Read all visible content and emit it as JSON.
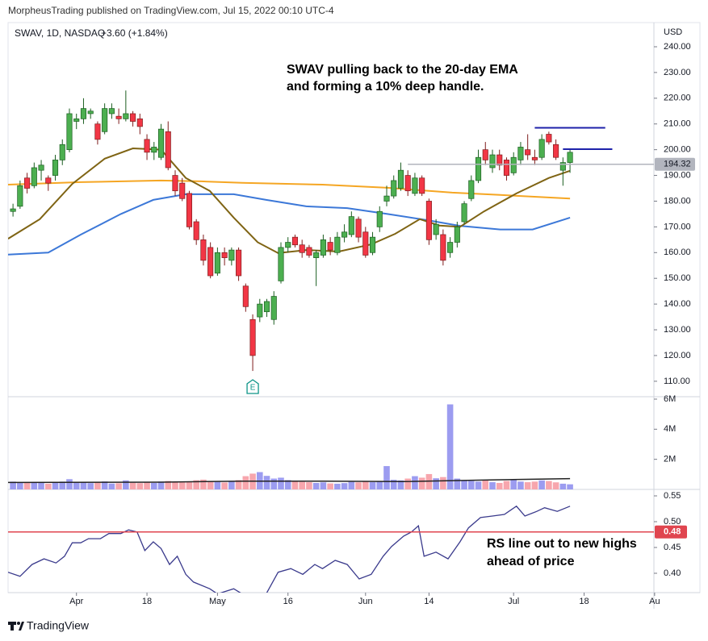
{
  "published_by": "MorpheusTrading published on TradingView.com, Jul 15, 2022 00:10 UTC-4",
  "footer": "TradingView",
  "chart_data": {
    "type": "candlestick",
    "symbol": "SWAV, 1D, NASDAQ",
    "change_label": "+3.60 (+1.84%)",
    "currency": "USD",
    "up_color": "#4caf50",
    "down_color": "#f23645",
    "xlim": [
      -0.7,
      90.9
    ],
    "xticks": [
      {
        "value": 9,
        "label": "Apr"
      },
      {
        "value": 19,
        "label": "18"
      },
      {
        "value": 29,
        "label": "May"
      },
      {
        "value": 39,
        "label": "16"
      },
      {
        "value": 50,
        "label": "Jun"
      },
      {
        "value": 59,
        "label": "14"
      },
      {
        "value": 71,
        "label": "Jul"
      },
      {
        "value": 81,
        "label": "18"
      },
      {
        "value": 91,
        "label": "Au"
      }
    ],
    "ylim": [
      104.0,
      249.4
    ],
    "yticks": [
      {
        "value": 110,
        "label": "110.00"
      },
      {
        "value": 120,
        "label": "120.00"
      },
      {
        "value": 130,
        "label": "130.00"
      },
      {
        "value": 140,
        "label": "140.00"
      },
      {
        "value": 150,
        "label": "150.00"
      },
      {
        "value": 160,
        "label": "160.00"
      },
      {
        "value": 170,
        "label": "170.00"
      },
      {
        "value": 180,
        "label": "180.00"
      },
      {
        "value": 190,
        "label": "190.00"
      },
      {
        "value": 200,
        "label": "200.00"
      },
      {
        "value": 210,
        "label": "210.00"
      },
      {
        "value": 220,
        "label": "220.00"
      },
      {
        "value": 230,
        "label": "230.00"
      },
      {
        "value": 240,
        "label": "240.00"
      }
    ],
    "ohlc": [
      [
        176,
        179,
        174,
        177
      ],
      [
        178,
        188,
        177,
        186
      ],
      [
        189,
        191,
        183,
        185
      ],
      [
        186,
        195,
        185,
        193
      ],
      [
        192,
        196,
        188,
        194
      ],
      [
        189,
        190,
        184,
        187
      ],
      [
        190,
        198,
        188,
        196
      ],
      [
        196,
        204,
        194,
        202
      ],
      [
        200,
        216,
        199,
        214
      ],
      [
        211,
        214,
        208,
        212
      ],
      [
        212,
        220,
        210,
        216
      ],
      [
        214,
        216,
        212,
        215
      ],
      [
        210,
        211,
        202,
        204
      ],
      [
        207,
        218,
        206,
        216
      ],
      [
        214,
        218,
        212,
        216
      ],
      [
        213,
        216,
        210,
        212
      ],
      [
        212,
        223,
        211,
        214
      ],
      [
        214,
        215,
        209,
        211
      ],
      [
        212,
        214,
        206,
        209
      ],
      [
        204,
        206,
        196,
        199
      ],
      [
        199,
        203,
        196,
        201
      ],
      [
        197,
        210,
        196,
        208
      ],
      [
        207,
        211,
        192,
        193
      ],
      [
        190,
        192,
        182,
        184
      ],
      [
        187,
        189,
        180,
        181
      ],
      [
        183,
        184,
        169,
        170
      ],
      [
        172,
        173,
        163,
        165
      ],
      [
        165,
        167,
        155,
        157
      ],
      [
        162,
        164,
        150,
        151
      ],
      [
        152,
        162,
        151,
        160
      ],
      [
        160,
        162,
        155,
        158
      ],
      [
        157,
        162,
        155,
        161
      ],
      [
        161,
        162,
        149,
        151
      ],
      [
        147,
        148,
        137,
        139
      ],
      [
        134,
        136,
        114,
        120
      ],
      [
        135,
        142,
        133,
        140
      ],
      [
        137,
        142,
        135,
        141
      ],
      [
        134,
        145,
        132,
        143
      ],
      [
        149,
        164,
        148,
        162
      ],
      [
        162,
        166,
        160,
        164
      ],
      [
        166,
        167,
        162,
        163
      ],
      [
        163,
        165,
        158,
        160
      ],
      [
        162,
        163,
        158,
        159
      ],
      [
        158,
        161,
        147,
        160
      ],
      [
        159,
        167,
        158,
        165
      ],
      [
        164,
        166,
        159,
        161
      ],
      [
        160,
        168,
        159,
        166
      ],
      [
        166,
        171,
        164,
        168
      ],
      [
        167,
        176,
        166,
        174
      ],
      [
        173,
        174,
        164,
        166
      ],
      [
        168,
        170,
        158,
        159
      ],
      [
        160,
        168,
        159,
        166
      ],
      [
        170,
        178,
        168,
        176
      ],
      [
        180,
        186,
        178,
        182
      ],
      [
        182,
        190,
        181,
        188
      ],
      [
        185,
        195,
        184,
        192
      ],
      [
        190,
        192,
        182,
        184
      ],
      [
        183,
        191,
        182,
        189
      ],
      [
        189,
        190,
        182,
        183
      ],
      [
        180,
        181,
        163,
        165
      ],
      [
        167,
        173,
        165,
        171
      ],
      [
        167,
        169,
        155,
        157
      ],
      [
        160,
        166,
        158,
        164
      ],
      [
        164,
        172,
        162,
        170
      ],
      [
        172,
        180,
        171,
        179
      ],
      [
        181,
        190,
        180,
        188
      ],
      [
        188,
        200,
        187,
        197
      ],
      [
        200,
        203,
        194,
        196
      ],
      [
        193,
        200,
        191,
        198
      ],
      [
        198,
        200,
        192,
        194
      ],
      [
        196,
        197,
        188,
        190
      ],
      [
        191,
        199,
        190,
        197
      ],
      [
        196,
        203,
        194,
        201
      ],
      [
        200,
        206,
        196,
        198
      ],
      [
        197,
        200,
        194,
        196
      ],
      [
        197,
        206,
        196,
        204
      ],
      [
        206,
        207,
        202,
        203
      ],
      [
        202,
        204,
        196,
        197
      ],
      [
        192,
        197,
        186,
        195
      ],
      [
        195,
        200,
        191,
        199
      ]
    ],
    "moving_averages": [
      {
        "color": "#f5a623",
        "x": [
          -0.7,
          9.6,
          21,
          26.7,
          32.5,
          43.9,
          53.1,
          62.3,
          69.1,
          79
        ],
        "values": [
          186.4,
          187.4,
          188,
          187.7,
          187.1,
          186.4,
          185.2,
          183.3,
          182.4,
          181
        ]
      },
      {
        "color": "#3c78d8",
        "x": [
          -0.7,
          5,
          9.6,
          15.3,
          19.9,
          24.5,
          31.3,
          35.9,
          41.6,
          47.4,
          53.1,
          58.8,
          63.4,
          69.1,
          73.7,
          79
        ],
        "values": [
          159.2,
          160,
          167,
          175,
          180.5,
          182.7,
          182.7,
          180.5,
          178,
          177.3,
          175,
          172.6,
          170.4,
          169,
          169,
          173.6
        ]
      },
      {
        "color": "#7f6414",
        "x": [
          -0.7,
          3.8,
          8.4,
          13,
          17,
          21,
          24.5,
          27.9,
          31.3,
          34.7,
          37.6,
          41.6,
          46.2,
          50.8,
          54.2,
          57.7,
          60.5,
          63.4,
          66.8,
          71.4,
          76,
          79
        ],
        "values": [
          165.4,
          173,
          186.7,
          196.5,
          200.5,
          200,
          189,
          184,
          173.6,
          164,
          159.8,
          161,
          160.4,
          163.2,
          167.3,
          173,
          170.5,
          170,
          176,
          183,
          189,
          191.8
        ]
      }
    ],
    "price_lines": [
      {
        "value": 208.5,
        "x": [
          74,
          84
        ],
        "color": "#1e22aa"
      },
      {
        "value": 200.2,
        "x": [
          78,
          85
        ],
        "color": "#1e22aa"
      }
    ],
    "last_line": {
      "value": 194.32,
      "label": "194.32",
      "x": 56,
      "color": "#b2b5be"
    },
    "earnings": {
      "label": "E",
      "x": 34
    },
    "annotations": [
      {
        "lines": [
          "SWAV pulling back to the 20-day EMA",
          "and forming a 10% deep handle."
        ]
      },
      {
        "lines": [
          "RS line out to new highs",
          "ahead of price"
        ]
      }
    ],
    "volume": {
      "ylim": [
        0,
        6160000
      ],
      "yticks": [
        {
          "value": 2000000,
          "label": "2M"
        },
        {
          "value": 4000000,
          "label": "4M"
        },
        {
          "value": 6000000,
          "label": "6M"
        }
      ],
      "up_color": "#9c9cf0",
      "down_color": "#f7a6ad",
      "values": [
        520000,
        480000,
        450000,
        500000,
        430000,
        380000,
        460000,
        520000,
        680000,
        450000,
        500000,
        420000,
        470000,
        530000,
        390000,
        410000,
        600000,
        440000,
        420000,
        480000,
        430000,
        520000,
        560000,
        500000,
        470000,
        520000,
        610000,
        650000,
        560000,
        500000,
        460000,
        540000,
        620000,
        880000,
        1050000,
        1150000,
        900000,
        720000,
        780000,
        620000,
        560000,
        500000,
        480000,
        430000,
        470000,
        400000,
        380000,
        420000,
        500000,
        470000,
        520000,
        480000,
        560000,
        1550000,
        640000,
        600000,
        720000,
        880000,
        780000,
        1020000,
        740000,
        820000,
        5650000,
        720000,
        600000,
        560000,
        520000,
        610000,
        480000,
        430000,
        560000,
        640000,
        520000,
        480000,
        520000,
        600000,
        560000,
        470000,
        380000,
        340000
      ],
      "ma_color": "#222222",
      "ma_x": [
        -0.7,
        21,
        32.5,
        43.9,
        55.4,
        66.8,
        79
      ],
      "ma_values": [
        460000,
        480000,
        550000,
        550000,
        520000,
        620000,
        720000
      ]
    },
    "rs": {
      "ylim": [
        0.3625,
        0.5625
      ],
      "yticks": [
        {
          "value": 0.4,
          "label": "0.40"
        },
        0.45,
        {
          "value": 0.5,
          "label": "0.50"
        },
        0.55
      ],
      "color": "#3a3a8c",
      "x": [
        -0.7,
        1,
        2.7,
        4.4,
        6.1,
        7.3,
        8.4,
        9.6,
        10.7,
        12.4,
        13.6,
        15.3,
        16.4,
        17.6,
        18.7,
        19.9,
        21,
        22.2,
        23.3,
        24.5,
        25.6,
        27.9,
        29,
        31.3,
        32.5,
        35.9,
        37.6,
        39.4,
        41.1,
        42.8,
        43.9,
        45.7,
        47.4,
        49.1,
        50.8,
        52.5,
        53.7,
        55.4,
        56.5,
        57.5,
        58.3,
        60,
        61.7,
        63.4,
        64.6,
        66.3,
        68,
        69.7,
        71.4,
        72.6,
        74.3,
        75.4,
        77.2,
        79
      ],
      "values": [
        0.402,
        0.394,
        0.417,
        0.428,
        0.42,
        0.433,
        0.459,
        0.459,
        0.467,
        0.467,
        0.477,
        0.477,
        0.484,
        0.48,
        0.444,
        0.461,
        0.448,
        0.417,
        0.433,
        0.398,
        0.383,
        0.37,
        0.36,
        0.37,
        0.36,
        0.36,
        0.402,
        0.409,
        0.398,
        0.417,
        0.409,
        0.425,
        0.417,
        0.389,
        0.398,
        0.433,
        0.452,
        0.472,
        0.48,
        0.492,
        0.433,
        0.441,
        0.428,
        0.461,
        0.488,
        0.508,
        0.511,
        0.514,
        0.53,
        0.511,
        0.52,
        0.527,
        0.52,
        0.53
      ],
      "level": {
        "value": 0.48,
        "label": "0.48",
        "color": "#e0454f"
      }
    }
  }
}
